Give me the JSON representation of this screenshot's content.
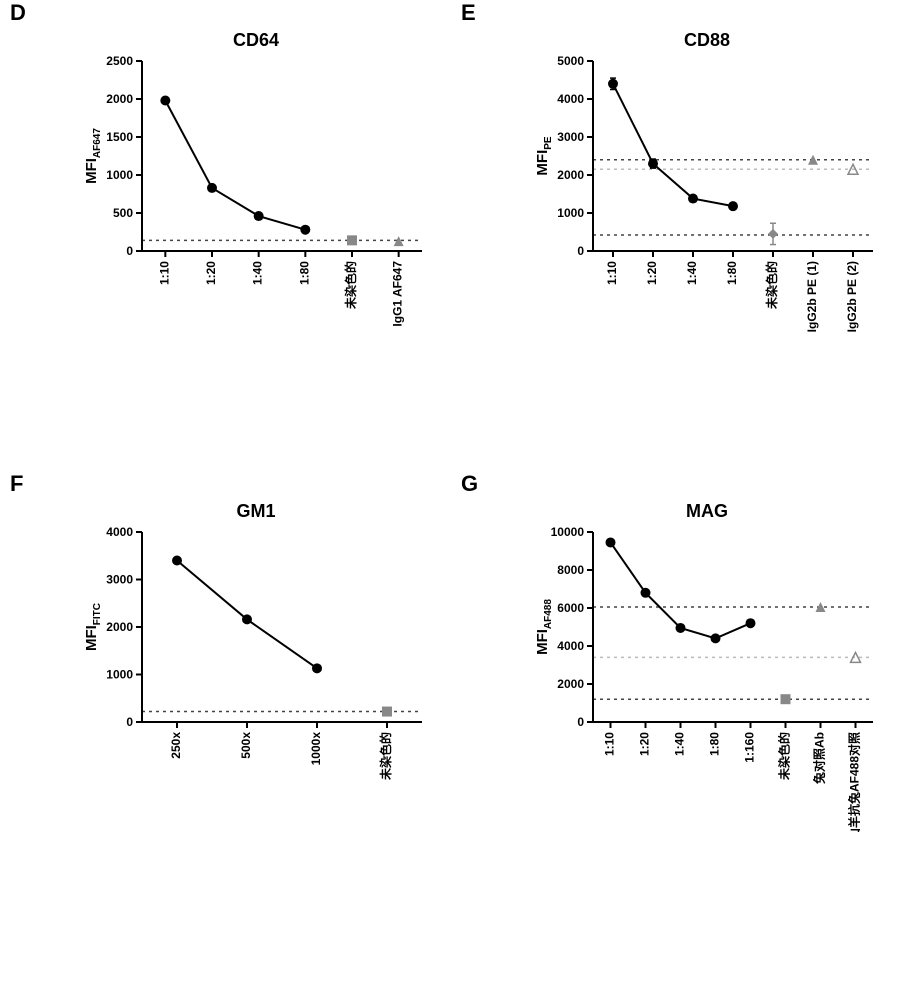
{
  "layout": {
    "panel_label_fontsize": 22,
    "title_fontsize": 18,
    "axis_label_fontsize": 15,
    "tick_fontsize": 12,
    "axis_color": "#000000",
    "line_color": "#000000",
    "marker_color": "#000000",
    "control_marker_color": "#888888",
    "dotted_line_color": "#444444",
    "light_dotted_line_color": "#bbbbbb",
    "background": "#ffffff",
    "line_width": 2,
    "axis_width": 2,
    "marker_size": 5,
    "dash_pattern": "3,4"
  },
  "panels": {
    "D": {
      "label": "D",
      "title": "CD64",
      "type": "line",
      "ylabel": "MFI",
      "ylabel_sub": "AF647",
      "ylim": [
        0,
        2500
      ],
      "ytick_step": 500,
      "x_categories": [
        "1:10",
        "1:20",
        "1:40",
        "1:80",
        "未染色的",
        "IgG1 AF647"
      ],
      "series_idx": [
        0,
        1,
        2,
        3
      ],
      "series_values": [
        1980,
        830,
        460,
        280
      ],
      "control_points": [
        {
          "idx": 4,
          "y": 140,
          "marker": "square"
        },
        {
          "idx": 5,
          "y": 130,
          "marker": "triangle"
        }
      ],
      "dotted_lines": [
        140
      ],
      "light_dotted_lines": []
    },
    "E": {
      "label": "E",
      "title": "CD88",
      "type": "line",
      "ylabel": "MFI",
      "ylabel_sub": "PE",
      "ylim": [
        0,
        5000
      ],
      "ytick_step": 1000,
      "x_categories": [
        "1:10",
        "1:20",
        "1:40",
        "1:80",
        "未染色的",
        "IgG2b PE (1)",
        "IgG2b PE (2)"
      ],
      "series_idx": [
        0,
        1,
        2,
        3
      ],
      "series_values": [
        4400,
        2300,
        1380,
        1180
      ],
      "series_err": [
        150,
        120,
        60,
        40
      ],
      "control_points": [
        {
          "idx": 4,
          "y": 450,
          "marker": "diamond",
          "err": 280
        },
        {
          "idx": 5,
          "y": 2400,
          "marker": "triangle"
        },
        {
          "idx": 6,
          "y": 2150,
          "marker": "triangle-open"
        }
      ],
      "dotted_lines": [
        2400,
        420
      ],
      "light_dotted_lines": [
        2150
      ]
    },
    "F": {
      "label": "F",
      "title": "GM1",
      "type": "line",
      "ylabel": "MFI",
      "ylabel_sub": "FITC",
      "ylim": [
        0,
        4000
      ],
      "ytick_step": 1000,
      "x_categories": [
        "250x",
        "500x",
        "1000x",
        "未染色的"
      ],
      "series_idx": [
        0,
        1,
        2
      ],
      "series_values": [
        3400,
        2160,
        1130
      ],
      "control_points": [
        {
          "idx": 3,
          "y": 220,
          "marker": "square"
        }
      ],
      "dotted_lines": [
        220
      ],
      "light_dotted_lines": []
    },
    "G": {
      "label": "G",
      "title": "MAG",
      "type": "line",
      "ylabel": "MFI",
      "ylabel_sub": "AF488",
      "ylim": [
        0,
        10000
      ],
      "ytick_step": 2000,
      "x_categories": [
        "1:10",
        "1:20",
        "1:40",
        "1:80",
        "1:160",
        "未染色的",
        "兔对照Ab",
        "山羊抗兔AF488对照"
      ],
      "series_idx": [
        0,
        1,
        2,
        3,
        4
      ],
      "series_values": [
        9450,
        6800,
        4950,
        4400,
        5200
      ],
      "control_points": [
        {
          "idx": 5,
          "y": 1200,
          "marker": "square"
        },
        {
          "idx": 6,
          "y": 6050,
          "marker": "triangle"
        },
        {
          "idx": 7,
          "y": 3400,
          "marker": "triangle-open"
        }
      ],
      "dotted_lines": [
        6050,
        1200
      ],
      "light_dotted_lines": [
        3400
      ]
    }
  }
}
